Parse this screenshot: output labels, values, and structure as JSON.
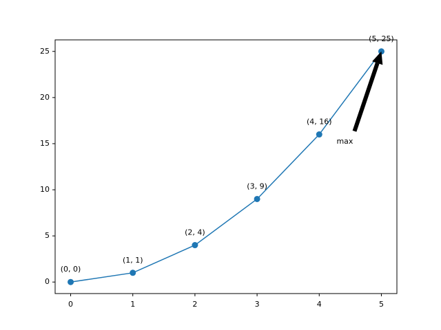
{
  "chart_data": {
    "type": "line",
    "x": [
      0,
      1,
      2,
      3,
      4,
      5
    ],
    "series": [
      {
        "color": "#1f77b4",
        "values": [
          0,
          1,
          4,
          9,
          16,
          25
        ],
        "value_labels": [
          "(0, 0)",
          "(1, 1)",
          "(2, 4)",
          "(3, 9)",
          "(4, 16)",
          "(5, 25)"
        ]
      }
    ],
    "xlim": [
      -0.25,
      5.25
    ],
    "xticks": [
      0,
      1,
      2,
      3,
      4,
      5
    ],
    "ylim": [
      -1.25,
      26.25
    ],
    "yticks": [
      0,
      5,
      10,
      15,
      20,
      25
    ],
    "annotations": [
      {
        "text": "max"
      }
    ]
  }
}
